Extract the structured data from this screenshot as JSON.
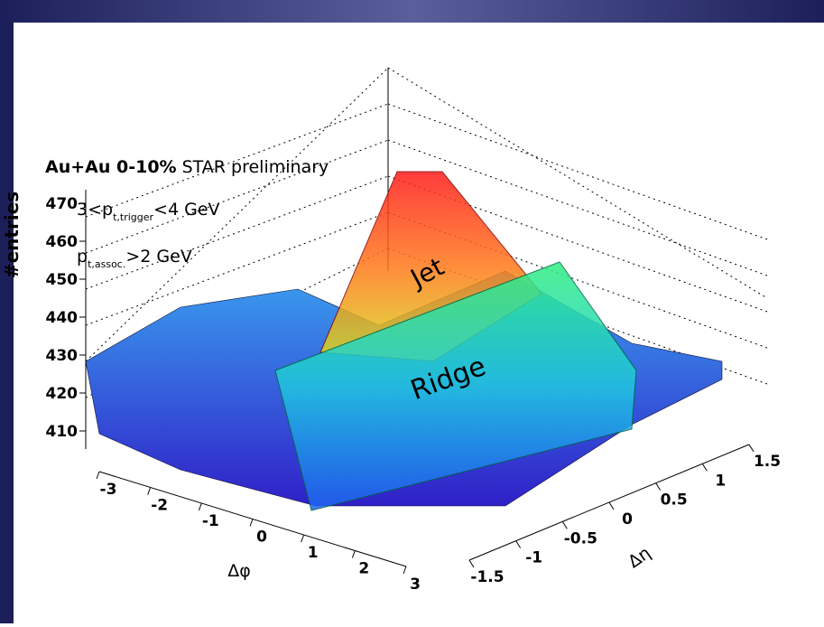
{
  "chart_data": {
    "type": "surface3d",
    "title_bold": "Au+Au 0-10%",
    "title": "STAR preliminary",
    "cuts": [
      {
        "main": "3<p",
        "sub": "t,trigger",
        "tail": "<4 GeV"
      },
      {
        "main": "p",
        "sub": "t,assoc.",
        "tail": ">2 GeV"
      }
    ],
    "z_label": "#entries",
    "x_label": "Δφ",
    "y_label": "Δη",
    "zticks": [
      410,
      420,
      430,
      440,
      450,
      460,
      470
    ],
    "xticks": [
      -3,
      -2,
      -1,
      0,
      1,
      2,
      3
    ],
    "yticks": [
      -1.5,
      -1,
      -0.5,
      0,
      0.5,
      1,
      1.5
    ],
    "annotations": [
      "Jet",
      "Ridge"
    ]
  }
}
